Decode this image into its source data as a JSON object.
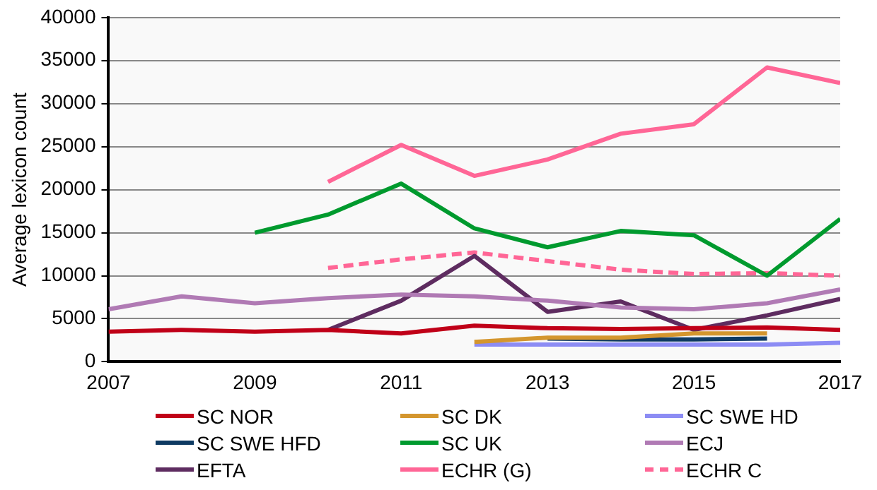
{
  "chart_data": {
    "type": "line",
    "ylabel": "Average lexicon count",
    "x": [
      2007,
      2008,
      2009,
      2010,
      2011,
      2012,
      2013,
      2014,
      2015,
      2016,
      2017
    ],
    "xlim": [
      2007,
      2017
    ],
    "xticks": [
      2007,
      2009,
      2011,
      2013,
      2015,
      2017
    ],
    "ylim": [
      0,
      40000
    ],
    "yticks": [
      0,
      5000,
      10000,
      15000,
      20000,
      25000,
      30000,
      35000,
      40000
    ],
    "grid": "y",
    "legend": "bottom",
    "marker": "none",
    "series": [
      {
        "name": "SC NOR",
        "color": "#c00018",
        "values": [
          3500,
          3700,
          3500,
          3700,
          3300,
          4200,
          3900,
          3800,
          3900,
          4000,
          3700
        ]
      },
      {
        "name": "SC DK",
        "color": "#d4962e",
        "values": [
          null,
          null,
          null,
          null,
          null,
          2300,
          2800,
          2800,
          3300,
          3300,
          null
        ]
      },
      {
        "name": "SC SWE HD",
        "color": "#8c8cf4",
        "values": [
          null,
          null,
          null,
          null,
          null,
          2000,
          2000,
          2000,
          2000,
          2000,
          2200
        ]
      },
      {
        "name": "SC SWE HFD",
        "color": "#0e3a62",
        "values": [
          null,
          null,
          null,
          null,
          null,
          null,
          2700,
          2600,
          2600,
          2700,
          null
        ]
      },
      {
        "name": "SC UK",
        "color": "#009a2e",
        "values": [
          null,
          null,
          15000,
          17100,
          20700,
          15500,
          13300,
          15200,
          14700,
          10000,
          16600
        ]
      },
      {
        "name": "ECJ",
        "color": "#b07ab4",
        "values": [
          6100,
          7600,
          6800,
          7400,
          7800,
          7600,
          7100,
          6300,
          6100,
          6800,
          8400
        ]
      },
      {
        "name": "EFTA",
        "color": "#5e2c60",
        "values": [
          null,
          null,
          null,
          3700,
          7100,
          12300,
          5800,
          7000,
          3700,
          5400,
          7300
        ]
      },
      {
        "name": "ECHR (G)",
        "color": "#ff6696",
        "values": [
          null,
          null,
          null,
          20900,
          25200,
          21600,
          23500,
          26500,
          27600,
          34200,
          32400
        ]
      },
      {
        "name": "ECHR C",
        "color": "#ff6696",
        "line_style": "dashed",
        "values": [
          null,
          null,
          null,
          10900,
          11900,
          12700,
          11700,
          10700,
          10200,
          10300,
          10000
        ]
      }
    ]
  }
}
